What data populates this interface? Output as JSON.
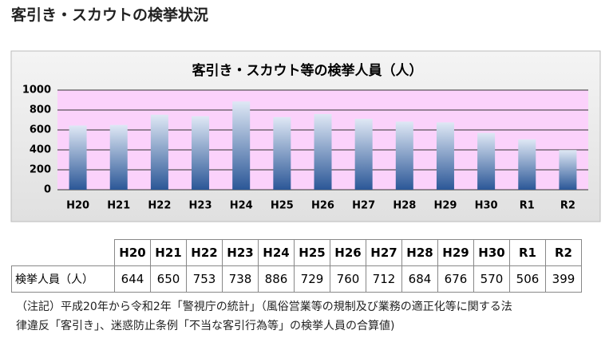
{
  "header": {
    "title": "客引き・スカウトの検挙状況"
  },
  "chart_data": {
    "type": "bar",
    "title": "客引き・スカウト等の検挙人員（人）",
    "categories": [
      "H20",
      "H21",
      "H22",
      "H23",
      "H24",
      "H25",
      "H26",
      "H27",
      "H28",
      "H29",
      "H30",
      "R1",
      "R2"
    ],
    "values": [
      644,
      650,
      753,
      738,
      886,
      729,
      760,
      712,
      684,
      676,
      570,
      506,
      399
    ],
    "color": "#2b5797",
    "ylim": [
      0,
      1000
    ],
    "yticks": [
      0,
      200,
      400,
      600,
      800,
      1000
    ],
    "grid": true
  },
  "table": {
    "row_label": "検挙人員（人）"
  },
  "note": {
    "lines": [
      "（注記）平成20年から令和2年「警視庁の統計」（風俗営業等の規制及び業務の適正化等に関する法",
      "律違反「客引き」、迷惑防止条例「不当な客引行為等」の検挙人員の合算値)"
    ]
  }
}
